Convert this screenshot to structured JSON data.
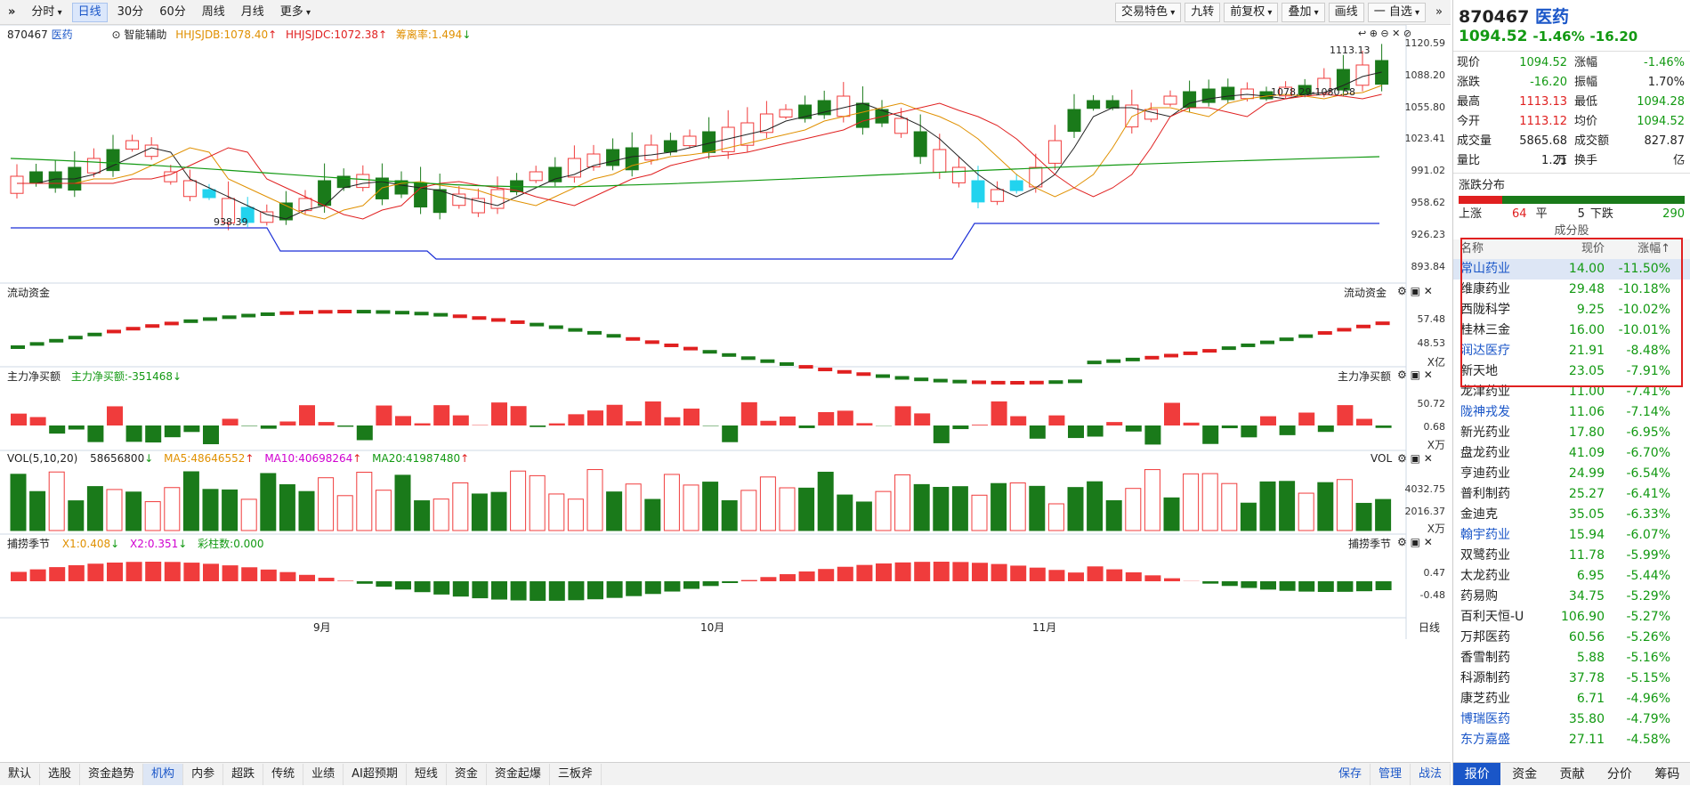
{
  "toolbar": {
    "items": [
      {
        "label": "分时",
        "dd": true
      },
      {
        "label": "日线",
        "active": true
      },
      {
        "label": "30分"
      },
      {
        "label": "60分"
      },
      {
        "label": "周线"
      },
      {
        "label": "月线"
      },
      {
        "label": "更多",
        "dd": true
      }
    ],
    "right_items": [
      {
        "label": "交易特色",
        "dd": true
      },
      {
        "label": "九转"
      },
      {
        "label": "前复权",
        "dd": true
      },
      {
        "label": "叠加",
        "dd": true
      },
      {
        "label": "画线"
      },
      {
        "label": "一 自选",
        "dd": true
      }
    ]
  },
  "main_chart": {
    "code": "870467",
    "name": "医药",
    "assist": "智能辅助",
    "ind1": "HHJSJDB:1078.40",
    "ind2": "HHJSJDC:1072.38",
    "ind3": "筹离率:1.494",
    "y_ticks": [
      "1120.59",
      "1088.20",
      "1055.80",
      "1023.41",
      "991.02",
      "958.62",
      "926.23",
      "893.84"
    ],
    "high_label": "1113.13",
    "low_label": "938.39",
    "range_label": "1078.29-1080.58"
  },
  "flow_panel": {
    "title": "流动资金",
    "title_right": "流动资金",
    "ticks": [
      "57.48",
      "48.53"
    ],
    "unit": "X亿"
  },
  "main_net_panel": {
    "title": "主力净买额",
    "value_label": "主力净买额:-351468",
    "title_right": "主力净买额",
    "ticks": [
      "50.72",
      "0.68"
    ],
    "unit": "X万"
  },
  "vol_panel": {
    "title": "VOL(5,10,20)",
    "vol": "58656800",
    "ma5": "MA5:48646552",
    "ma10": "MA10:40698264",
    "ma20": "MA20:41987480",
    "title_right": "VOL",
    "ticks": [
      "4032.75",
      "2016.37"
    ],
    "unit": "X万"
  },
  "catch_panel": {
    "title": "捕捞季节",
    "x1": "X1:0.408",
    "x2": "X2:0.351",
    "bars": "彩柱数:0.000",
    "title_right": "捕捞季节",
    "ticks": [
      "0.47",
      "-0.48"
    ]
  },
  "x_axis": {
    "labels": [
      "9月",
      "10月",
      "11月"
    ],
    "right": "日线"
  },
  "bottom_tabs": [
    "默认",
    "选股",
    "资金趋势",
    "机构",
    "内参",
    "超跌",
    "传统",
    "业绩",
    "AI超预期",
    "短线",
    "资金",
    "资金起爆",
    "三板斧"
  ],
  "bottom_right": [
    "保存",
    "管理",
    "战法"
  ],
  "side": {
    "code": "870467",
    "name": "医药",
    "price": "1094.52",
    "chg_pct": "-1.46%",
    "chg": "-16.20",
    "quote": [
      {
        "k1": "现价",
        "v1": "1094.52",
        "c1": "green",
        "k2": "涨幅",
        "v2": "-1.46%",
        "c2": "green"
      },
      {
        "k1": "涨跌",
        "v1": "-16.20",
        "c1": "green",
        "k2": "振幅",
        "v2": "1.70%",
        "c2": "black"
      },
      {
        "k1": "最高",
        "v1": "1113.13",
        "c1": "red",
        "k2": "最低",
        "v2": "1094.28",
        "c2": "green"
      },
      {
        "k1": "今开",
        "v1": "1113.12",
        "c1": "red",
        "k2": "均价",
        "v2": "1094.52",
        "c2": "green"
      },
      {
        "k1": "成交量",
        "v1": "5865.68万",
        "c1": "black",
        "k2": "成交额",
        "v2": "827.87亿",
        "c2": "black"
      },
      {
        "k1": "量比",
        "v1": "1.21",
        "c1": "black",
        "k2": "换手",
        "v2": "-",
        "c2": "black"
      }
    ],
    "dist_title": "涨跌分布",
    "up_label": "上涨",
    "up": "64",
    "flat_label": "平",
    "flat": "5",
    "down_label": "下跌",
    "down": "290",
    "comp_title": "成分股",
    "headers": [
      "名称",
      "现价",
      "涨幅↑"
    ],
    "stocks": [
      {
        "n": "常山药业",
        "p": "14.00",
        "c": "-11.50%",
        "link": true,
        "sel": true
      },
      {
        "n": "维康药业",
        "p": "29.48",
        "c": "-10.18%"
      },
      {
        "n": "西陇科学",
        "p": "9.25",
        "c": "-10.02%"
      },
      {
        "n": "桂林三金",
        "p": "16.00",
        "c": "-10.01%"
      },
      {
        "n": "润达医疗",
        "p": "21.91",
        "c": "-8.48%",
        "link": true
      },
      {
        "n": "新天地",
        "p": "23.05",
        "c": "-7.91%"
      },
      {
        "n": "龙津药业",
        "p": "11.00",
        "c": "-7.41%"
      },
      {
        "n": "陇神戎发",
        "p": "11.06",
        "c": "-7.14%",
        "link": true
      },
      {
        "n": "新光药业",
        "p": "17.80",
        "c": "-6.95%"
      },
      {
        "n": "盘龙药业",
        "p": "41.09",
        "c": "-6.70%"
      },
      {
        "n": "亨迪药业",
        "p": "24.99",
        "c": "-6.54%"
      },
      {
        "n": "普利制药",
        "p": "25.27",
        "c": "-6.41%"
      },
      {
        "n": "金迪克",
        "p": "35.05",
        "c": "-6.33%"
      },
      {
        "n": "翰宇药业",
        "p": "15.94",
        "c": "-6.07%",
        "link": true
      },
      {
        "n": "双鹭药业",
        "p": "11.78",
        "c": "-5.99%"
      },
      {
        "n": "太龙药业",
        "p": "6.95",
        "c": "-5.44%"
      },
      {
        "n": "药易购",
        "p": "34.75",
        "c": "-5.29%"
      },
      {
        "n": "百利天恒-U",
        "p": "106.90",
        "c": "-5.27%"
      },
      {
        "n": "万邦医药",
        "p": "60.56",
        "c": "-5.26%"
      },
      {
        "n": "香雪制药",
        "p": "5.88",
        "c": "-5.16%"
      },
      {
        "n": "科源制药",
        "p": "37.78",
        "c": "-5.15%"
      },
      {
        "n": "康芝药业",
        "p": "6.71",
        "c": "-4.96%"
      },
      {
        "n": "博瑞医药",
        "p": "35.80",
        "c": "-4.79%",
        "link": true
      },
      {
        "n": "东方嘉盛",
        "p": "27.11",
        "c": "-4.58%",
        "link": true
      }
    ],
    "tabs": [
      "报价",
      "资金",
      "贡献",
      "分价",
      "筹码"
    ]
  }
}
